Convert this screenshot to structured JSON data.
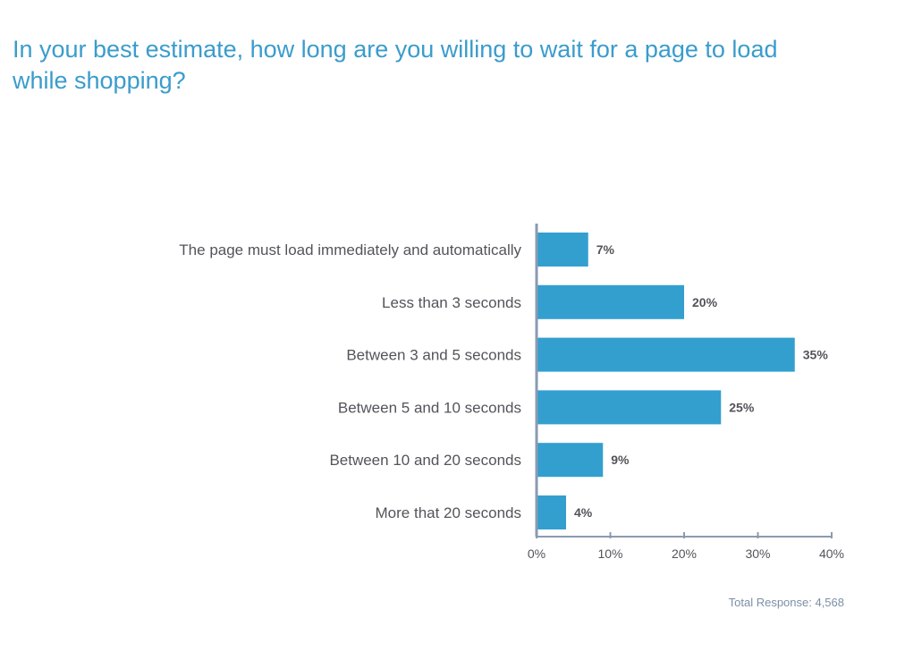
{
  "chart_data": {
    "type": "bar",
    "orientation": "horizontal",
    "title": "In your best estimate, how long are you willing to wait for a page to load while shopping?",
    "categories": [
      "The page must load immediately and automatically",
      "Less than 3 seconds",
      "Between 3 and 5 seconds",
      "Between 5 and 10 seconds",
      "Between 10 and 20 seconds",
      "More that 20 seconds"
    ],
    "values": [
      7,
      20,
      35,
      25,
      9,
      4
    ],
    "value_labels": [
      "7%",
      "20%",
      "35%",
      "25%",
      "9%",
      "4%"
    ],
    "xlim": [
      0,
      40
    ],
    "xticks": [
      0,
      10,
      20,
      30,
      40
    ],
    "xtick_labels": [
      "0%",
      "10%",
      "20%",
      "30%",
      "40%"
    ],
    "grid": false,
    "legend": "none",
    "colors": {
      "bar": "#339fcf",
      "title": "#3a9ccc",
      "axis": "#8a9bb1"
    },
    "footnote": "Total Response: 4,568"
  }
}
